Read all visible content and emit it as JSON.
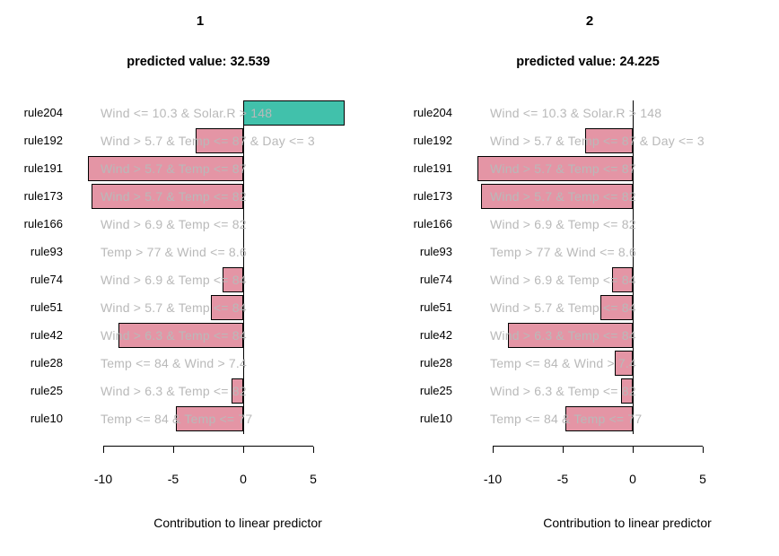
{
  "chart_data": {
    "type": "bar",
    "orientation": "horizontal",
    "title": "",
    "xlabel": "Contribution to linear predictor",
    "x_ticks": [
      -10,
      -5,
      0,
      5
    ],
    "xlim": [
      -11.5,
      7.5
    ],
    "grid": false,
    "legend": "none",
    "rules": [
      {
        "id": "rule204",
        "condition": "Wind <= 10.3 & Solar.R > 148"
      },
      {
        "id": "rule192",
        "condition": "Wind > 5.7 & Temp <= 87 & Day <= 3"
      },
      {
        "id": "rule191",
        "condition": "Wind > 5.7 & Temp <= 87"
      },
      {
        "id": "rule173",
        "condition": "Wind > 5.7 & Temp <= 82"
      },
      {
        "id": "rule166",
        "condition": "Wind > 6.9 & Temp <= 82"
      },
      {
        "id": "rule93",
        "condition": "Temp > 77 & Wind <= 8.6"
      },
      {
        "id": "rule74",
        "condition": "Wind > 6.9 & Temp <= 84"
      },
      {
        "id": "rule51",
        "condition": "Wind > 5.7 & Temp <= 84"
      },
      {
        "id": "rule42",
        "condition": "Wind > 6.3 & Temp <= 84"
      },
      {
        "id": "rule28",
        "condition": "Temp <= 84 & Wind > 7.4"
      },
      {
        "id": "rule25",
        "condition": "Wind > 6.3 & Temp <= 82"
      },
      {
        "id": "rule10",
        "condition": "Temp <= 84 & Temp <= 77"
      }
    ],
    "panels": [
      {
        "title": "1",
        "predicted_label": "predicted value: 32.539",
        "predicted_value": 32.539,
        "values": [
          7.24,
          -3.4,
          -11.09,
          -10.83,
          0,
          0,
          -1.47,
          -2.31,
          -8.91,
          0,
          -0.83,
          -4.81
        ]
      },
      {
        "title": "2",
        "predicted_label": "predicted value: 24.225",
        "predicted_value": 24.225,
        "values": [
          0,
          -3.4,
          -11.09,
          -10.83,
          0,
          0,
          -1.47,
          -2.31,
          -8.91,
          -1.28,
          -0.83,
          -4.81
        ]
      }
    ],
    "colors": {
      "positive": "#41c1ab",
      "negative": "#e495a5",
      "bar_border": "#000000",
      "condition_text": "#b9b9b9",
      "label_text": "#000000"
    }
  }
}
